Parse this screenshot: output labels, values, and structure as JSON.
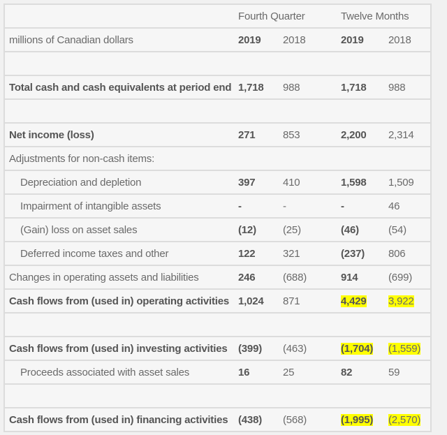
{
  "header": {
    "group1": "Fourth Quarter",
    "group2": "Twelve Months",
    "unit_label": "millions of Canadian dollars",
    "years": [
      "2019",
      "2018",
      "2019",
      "2018"
    ]
  },
  "highlight_color": "#ffff00",
  "rows": [
    {
      "label": "Total cash and cash equivalents at period end",
      "values": [
        "1,718",
        "988",
        "1,718",
        "988"
      ]
    },
    {
      "label": "Net income (loss)",
      "values": [
        "271",
        "853",
        "2,200",
        "2,314"
      ]
    },
    {
      "label": "Adjustments for non-cash items:",
      "values": [
        "",
        "",
        "",
        ""
      ]
    },
    {
      "label": "Depreciation and depletion",
      "values": [
        "397",
        "410",
        "1,598",
        "1,509"
      ]
    },
    {
      "label": "Impairment of intangible assets",
      "values": [
        "-",
        "-",
        "-",
        "46"
      ]
    },
    {
      "label": "(Gain) loss on asset sales",
      "values": [
        "(12)",
        "(25)",
        "(46)",
        "(54)"
      ]
    },
    {
      "label": "Deferred income taxes and other",
      "values": [
        "122",
        "321",
        "(237)",
        "806"
      ]
    },
    {
      "label": "Changes in operating assets and liabilities",
      "values": [
        "246",
        "(688)",
        "914",
        "(699)"
      ]
    },
    {
      "label": "Cash flows from (used in) operating activities",
      "values": [
        "1,024",
        "871",
        "4,429",
        "3,922"
      ]
    },
    {
      "label": "Cash flows from (used in) investing activities",
      "values": [
        "(399)",
        "(463)",
        "(1,704)",
        "(1,559)"
      ]
    },
    {
      "label": "Proceeds associated with asset sales",
      "values": [
        "16",
        "25",
        "82",
        "59"
      ]
    },
    {
      "label": "Cash flows from (used in) financing activities",
      "values": [
        "(438)",
        "(568)",
        "(1,995)",
        "(2,570)"
      ]
    }
  ]
}
